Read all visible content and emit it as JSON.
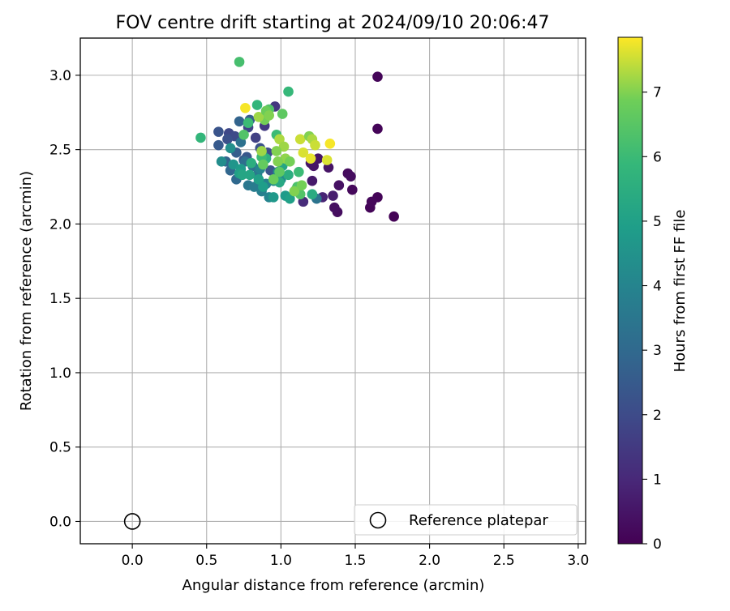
{
  "chart_data": {
    "type": "scatter",
    "title": "FOV centre drift starting at 2024/09/10 20:06:47",
    "xlabel": "Angular distance from reference (arcmin)",
    "ylabel": "Rotation from reference (arcmin)",
    "xlim": [
      -0.35,
      3.05
    ],
    "ylim": [
      -0.15,
      3.25
    ],
    "xticks": [
      0.0,
      0.5,
      1.0,
      1.5,
      2.0,
      2.5,
      3.0
    ],
    "xtick_labels": [
      "0.0",
      "0.5",
      "1.0",
      "1.5",
      "2.0",
      "2.5",
      "3.0"
    ],
    "yticks": [
      0.0,
      0.5,
      1.0,
      1.5,
      2.0,
      2.5,
      3.0
    ],
    "ytick_labels": [
      "0.0",
      "0.5",
      "1.0",
      "1.5",
      "2.0",
      "2.5",
      "3.0"
    ],
    "grid": true,
    "colormap": "viridis",
    "colorbar": {
      "label": "Hours from first FF file",
      "range": [
        0,
        7.85
      ],
      "ticks": [
        0,
        1,
        2,
        3,
        4,
        5,
        6,
        7
      ],
      "tick_labels": [
        "0",
        "1",
        "2",
        "3",
        "4",
        "5",
        "6",
        "7"
      ]
    },
    "legend": {
      "placement": "lower-right",
      "entries": [
        "Reference platepar"
      ]
    },
    "reference_point": {
      "x": 0.0,
      "y": 0.0,
      "marker": "open-circle"
    },
    "series": [
      {
        "points": [
          [
            1.65,
            2.99,
            0.1
          ],
          [
            1.65,
            2.64,
            0.1
          ],
          [
            1.76,
            2.05,
            0.05
          ],
          [
            1.65,
            2.18,
            0.1
          ],
          [
            1.6,
            2.11,
            0.1
          ],
          [
            1.61,
            2.15,
            0.15
          ],
          [
            1.48,
            2.23,
            0.2
          ],
          [
            1.45,
            2.34,
            0.25
          ],
          [
            1.47,
            2.32,
            0.3
          ],
          [
            1.38,
            2.08,
            0.3
          ],
          [
            1.36,
            2.11,
            0.35
          ],
          [
            1.39,
            2.26,
            0.4
          ],
          [
            1.32,
            2.38,
            0.45
          ],
          [
            1.22,
            2.39,
            0.45
          ],
          [
            1.21,
            2.29,
            0.6
          ],
          [
            1.35,
            2.19,
            0.7
          ],
          [
            1.28,
            2.18,
            0.9
          ],
          [
            1.15,
            2.15,
            1.1
          ],
          [
            1.25,
            2.44,
            0.5
          ],
          [
            1.2,
            2.41,
            0.5
          ],
          [
            0.96,
            2.79,
            1.4
          ],
          [
            0.89,
            2.66,
            1.5
          ],
          [
            0.78,
            2.65,
            1.8
          ],
          [
            0.83,
            2.58,
            1.7
          ],
          [
            0.58,
            2.62,
            2.3
          ],
          [
            0.65,
            2.61,
            1.9
          ],
          [
            0.69,
            2.59,
            2.0
          ],
          [
            0.64,
            2.57,
            2.2
          ],
          [
            0.58,
            2.53,
            2.5
          ],
          [
            0.72,
            2.69,
            2.8
          ],
          [
            0.79,
            2.7,
            2.6
          ],
          [
            0.86,
            2.51,
            2.2
          ],
          [
            0.91,
            2.48,
            2.0
          ],
          [
            0.93,
            2.36,
            2.3
          ],
          [
            0.77,
            2.45,
            2.4
          ],
          [
            0.7,
            2.48,
            2.6
          ],
          [
            0.75,
            2.43,
            2.5
          ],
          [
            0.63,
            2.42,
            2.8
          ],
          [
            0.66,
            2.36,
            2.9
          ],
          [
            0.7,
            2.3,
            3.0
          ],
          [
            0.76,
            2.42,
            3.2
          ],
          [
            0.81,
            2.39,
            3.3
          ],
          [
            0.84,
            2.33,
            3.5
          ],
          [
            0.78,
            2.26,
            3.5
          ],
          [
            0.82,
            2.25,
            3.7
          ],
          [
            0.87,
            2.22,
            3.8
          ],
          [
            0.92,
            2.18,
            4.0
          ],
          [
            0.9,
            2.27,
            3.9
          ],
          [
            0.95,
            2.29,
            4.2
          ],
          [
            1.0,
            2.3,
            4.3
          ],
          [
            0.98,
            2.35,
            4.1
          ],
          [
            0.86,
            2.37,
            4.0
          ],
          [
            0.88,
            2.46,
            3.6
          ],
          [
            0.73,
            2.55,
            3.3
          ],
          [
            0.66,
            2.51,
            4.4
          ],
          [
            0.6,
            2.42,
            4.3
          ],
          [
            0.68,
            2.4,
            4.6
          ],
          [
            0.73,
            2.37,
            4.8
          ],
          [
            0.72,
            2.34,
            5.0
          ],
          [
            0.79,
            2.33,
            5.2
          ],
          [
            0.85,
            2.3,
            5.0
          ],
          [
            0.88,
            2.25,
            4.9
          ],
          [
            0.95,
            2.18,
            4.7
          ],
          [
            1.03,
            2.19,
            4.8
          ],
          [
            1.06,
            2.17,
            5.0
          ],
          [
            1.1,
            2.23,
            5.2
          ],
          [
            1.24,
            2.17,
            3.4
          ],
          [
            1.21,
            2.2,
            5.4
          ],
          [
            0.74,
            2.33,
            5.2
          ],
          [
            0.8,
            2.41,
            5.5
          ],
          [
            0.9,
            2.44,
            5.6
          ],
          [
            1.01,
            2.39,
            5.2
          ],
          [
            1.05,
            2.33,
            5.5
          ],
          [
            0.99,
            2.28,
            5.3
          ],
          [
            0.87,
            2.45,
            6.0
          ],
          [
            0.97,
            2.6,
            6.0
          ],
          [
            0.78,
            2.68,
            6.0
          ],
          [
            0.84,
            2.8,
            5.8
          ],
          [
            1.05,
            2.89,
            5.9
          ],
          [
            0.46,
            2.58,
            5.8
          ],
          [
            0.72,
            3.09,
            6.2
          ],
          [
            0.75,
            2.6,
            6.4
          ],
          [
            1.12,
            2.35,
            6.0
          ],
          [
            1.11,
            2.25,
            6.3
          ],
          [
            1.13,
            2.2,
            6.4
          ],
          [
            0.92,
            2.77,
            6.4
          ],
          [
            0.95,
            2.3,
            6.8
          ],
          [
            1.01,
            2.74,
            6.6
          ],
          [
            0.89,
            2.7,
            6.9
          ],
          [
            0.85,
            2.72,
            7.2
          ],
          [
            0.9,
            2.76,
            6.8
          ],
          [
            0.92,
            2.73,
            7.0
          ],
          [
            0.76,
            2.78,
            7.8
          ],
          [
            0.99,
            2.57,
            7.3
          ],
          [
            1.02,
            2.52,
            7.2
          ],
          [
            0.97,
            2.49,
            7.0
          ],
          [
            1.03,
            2.44,
            7.1
          ],
          [
            1.06,
            2.42,
            6.9
          ],
          [
            1.13,
            2.57,
            7.5
          ],
          [
            1.19,
            2.59,
            7.0
          ],
          [
            1.21,
            2.57,
            7.3
          ],
          [
            1.23,
            2.53,
            7.5
          ],
          [
            1.33,
            2.54,
            7.8
          ],
          [
            1.15,
            2.48,
            7.6
          ],
          [
            1.2,
            2.44,
            7.7
          ],
          [
            1.31,
            2.43,
            7.6
          ],
          [
            0.98,
            2.42,
            7.0
          ],
          [
            0.87,
            2.49,
            7.2
          ],
          [
            0.88,
            2.4,
            6.7
          ],
          [
            0.99,
            2.35,
            6.6
          ],
          [
            1.09,
            2.22,
            7.0
          ],
          [
            1.14,
            2.26,
            6.9
          ]
        ]
      }
    ]
  }
}
